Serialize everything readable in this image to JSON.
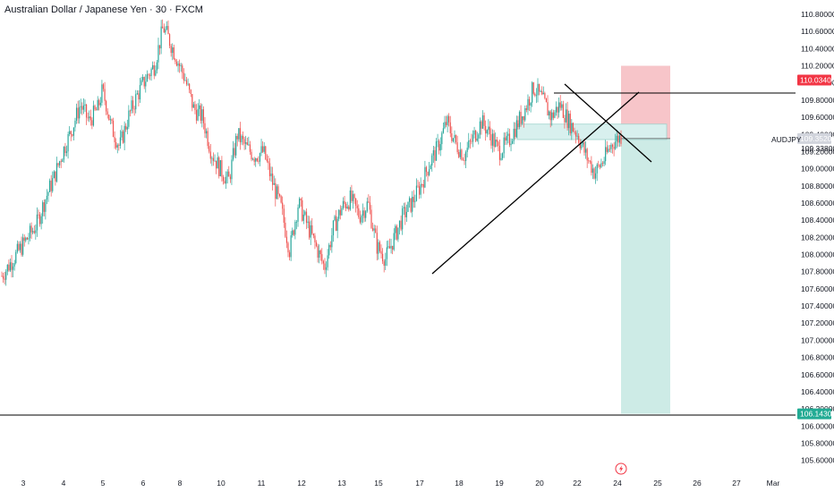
{
  "header": {
    "title": "Australian Dollar / Japanese Yen · 30 · FXCM"
  },
  "colors": {
    "up": "#26a69a",
    "down": "#ef5350",
    "sl_zone": "#f7c5c9",
    "tp_zone": "#cdebe6",
    "entry_box": "#d8f0ee",
    "sl_badge": "#f23645",
    "tp_badge": "#22ab94",
    "price_badge": "#d1d4dc",
    "line": "#000000"
  },
  "chart_data": {
    "type": "candlestick",
    "symbol": "AUDJPY",
    "ylim": [
      105.52,
      110.86
    ],
    "y_ticks": [
      "110.80000",
      "110.60000",
      "110.40000",
      "110.20000",
      "110.00000",
      "109.80000",
      "109.60000",
      "109.40000",
      "109.20000",
      "109.00000",
      "108.80000",
      "108.60000",
      "108.40000",
      "108.20000",
      "108.00000",
      "107.80000",
      "107.60000",
      "107.40000",
      "107.20000",
      "107.00000",
      "106.80000",
      "106.60000",
      "106.40000",
      "106.20000",
      "106.00000",
      "105.80000",
      "105.60000"
    ],
    "x_ticks": [
      "3",
      "4",
      "5",
      "6",
      "8",
      "10",
      "11",
      "12",
      "13",
      "15",
      "17",
      "18",
      "19",
      "20",
      "22",
      "24",
      "25",
      "26",
      "27",
      "Mar"
    ],
    "price_path": [
      [
        0,
        107.75
      ],
      [
        4,
        108.05
      ],
      [
        8,
        108.35
      ],
      [
        10,
        108.65
      ],
      [
        12,
        108.9
      ],
      [
        14,
        109.2
      ],
      [
        16,
        109.45
      ],
      [
        17,
        109.6
      ],
      [
        18,
        109.75
      ],
      [
        20,
        109.55
      ],
      [
        22,
        109.7
      ],
      [
        23,
        109.9
      ],
      [
        24,
        109.75
      ],
      [
        25,
        109.5
      ],
      [
        27,
        109.25
      ],
      [
        29,
        109.6
      ],
      [
        31,
        109.85
      ],
      [
        33,
        110.05
      ],
      [
        35,
        110.2
      ],
      [
        37,
        110.65
      ],
      [
        38,
        110.55
      ],
      [
        40,
        110.3
      ],
      [
        42,
        110.05
      ],
      [
        44,
        109.7
      ],
      [
        46,
        109.6
      ],
      [
        48,
        109.2
      ],
      [
        50,
        109.0
      ],
      [
        52,
        108.85
      ],
      [
        54,
        109.4
      ],
      [
        56,
        109.25
      ],
      [
        58,
        109.15
      ],
      [
        60,
        109.2
      ],
      [
        62,
        108.85
      ],
      [
        64,
        108.55
      ],
      [
        66,
        108.05
      ],
      [
        68,
        108.6
      ],
      [
        70,
        108.35
      ],
      [
        72,
        108.1
      ],
      [
        74,
        107.85
      ],
      [
        76,
        108.3
      ],
      [
        78,
        108.55
      ],
      [
        80,
        108.65
      ],
      [
        82,
        108.45
      ],
      [
        84,
        108.6
      ],
      [
        86,
        108.1
      ],
      [
        88,
        107.95
      ],
      [
        90,
        108.2
      ],
      [
        92,
        108.45
      ],
      [
        94,
        108.6
      ],
      [
        96,
        108.8
      ],
      [
        98,
        109.05
      ],
      [
        100,
        109.25
      ],
      [
        102,
        109.55
      ],
      [
        104,
        109.3
      ],
      [
        106,
        109.15
      ],
      [
        108,
        109.35
      ],
      [
        110,
        109.55
      ],
      [
        112,
        109.4
      ],
      [
        114,
        109.2
      ],
      [
        116,
        109.3
      ],
      [
        118,
        109.5
      ],
      [
        120,
        109.7
      ],
      [
        122,
        109.95
      ],
      [
        124,
        109.8
      ],
      [
        126,
        109.6
      ],
      [
        128,
        109.75
      ],
      [
        130,
        109.55
      ],
      [
        132,
        109.4
      ],
      [
        134,
        109.15
      ],
      [
        136,
        108.95
      ],
      [
        138,
        109.1
      ],
      [
        140,
        109.3
      ],
      [
        142,
        109.38
      ]
    ],
    "levels": {
      "stop_loss": 110.034,
      "entry": 109.352,
      "current": 109.338,
      "take_profit": 106.143
    },
    "price_labels": {
      "stop_loss": "110.03400",
      "entry": "109.35200",
      "take_profit": "106.14300",
      "symbol_tag": "AUDJPY",
      "current": "109.33800"
    },
    "watermark_icon": "lightning-icon"
  }
}
